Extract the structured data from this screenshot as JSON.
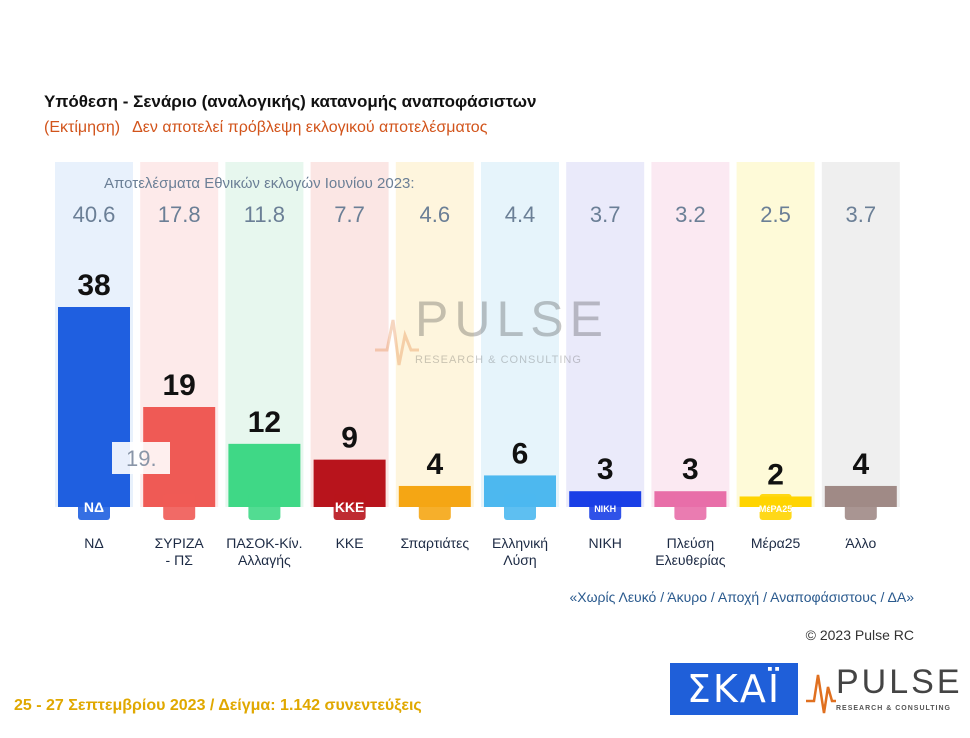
{
  "title": "Υπόθεση - Σενάριο (αναλογικής) κατανομής αναποφάσιστων",
  "subtitle_a": "(Εκτίμηση)",
  "subtitle_b": "Δεν αποτελεί πρόβλεψη εκλογικού αποτελέσματος",
  "chart_data": {
    "type": "bar",
    "reference_label": "Αποτελέσματα Εθνικών εκλογών Ιουνίου 2023:",
    "categories": [
      [
        "ΝΔ"
      ],
      [
        "ΣΥΡΙΖΑ",
        "- ΠΣ"
      ],
      [
        "ΠΑΣΟΚ-Κίν.",
        "Αλλαγής"
      ],
      [
        "ΚΚΕ"
      ],
      [
        "Σπαρτιάτες"
      ],
      [
        "Ελληνική",
        "Λύση"
      ],
      [
        "ΝΙΚΗ"
      ],
      [
        "Πλεύση",
        "Ελευθερίας"
      ],
      [
        "Μέρα25"
      ],
      [
        "Άλλο"
      ]
    ],
    "values": [
      38,
      19,
      12,
      9,
      4,
      6,
      3,
      3,
      2,
      4
    ],
    "reference_values": [
      "40.6",
      "17.8",
      "11.8",
      "7.7",
      "4.6",
      "4.4",
      "3.7",
      "3.2",
      "2.5",
      "3.7"
    ],
    "annotation_value": "19.",
    "colors": [
      "#1f5fe0",
      "#ef5a55",
      "#3fd886",
      "#b8141c",
      "#f5a614",
      "#4db8ef",
      "#1a3fe6",
      "#e86ea8",
      "#ffd400",
      "#a08a86"
    ],
    "column_tints": [
      "#e8f1fc",
      "#fdeaea",
      "#e7f7ee",
      "#fbe6e4",
      "#fef5dd",
      "#e6f4fb",
      "#eaeafa",
      "#fbe9f2",
      "#fefad8",
      "#efefef"
    ],
    "logo_texts": [
      "ΝΔ",
      "",
      "",
      "ΚΚΕ",
      "",
      "",
      "ΝΙΚΗ",
      "",
      "ΜέΡΑ25",
      ""
    ],
    "ylim": [
      0,
      45
    ]
  },
  "footnote": "«Χωρίς Λευκό / Άκυρο / Αποχή / Αναποφάσιστους / ΔΑ»",
  "copyright": "© 2023 Pulse RC",
  "date_line": "25 - 27 Σεπτεμβρίου  2023  /  Δείγμα:  1.142 συνεντεύξεις",
  "brand": {
    "skai_text": "ΣΚΑΪ",
    "pulse_text": "PULSE",
    "pulse_tagline": "RESEARCH & CONSULTING"
  }
}
